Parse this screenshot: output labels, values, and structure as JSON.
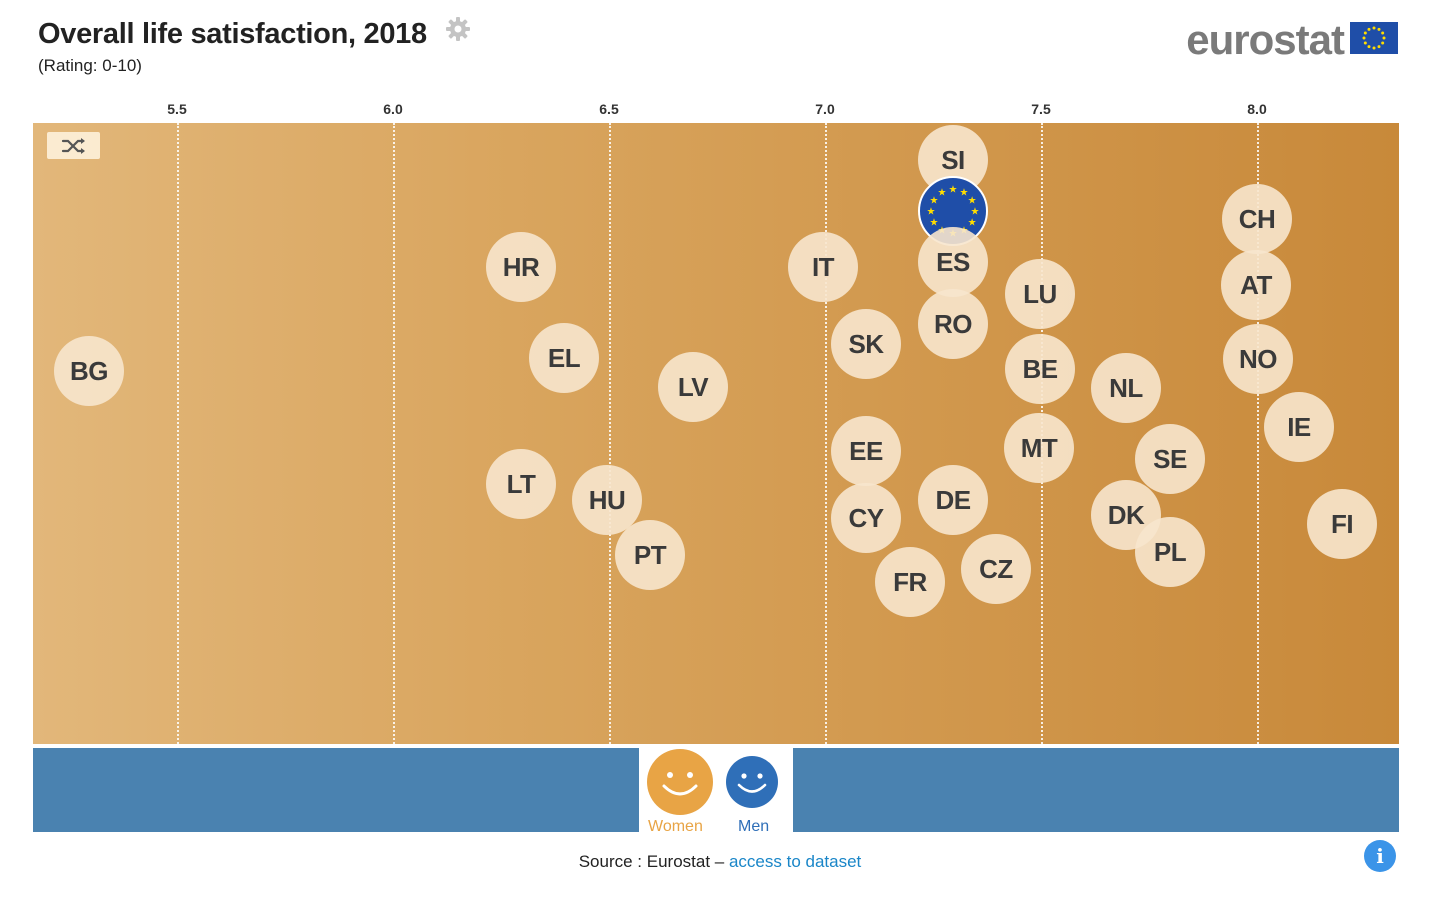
{
  "header": {
    "title": "Overall life satisfaction, 2018",
    "subtitle": "(Rating: 0-10)",
    "logo_text": "eurostat"
  },
  "icons": {
    "settings": "gear-icon",
    "shuffle": "shuffle-icon",
    "eu_flag": "eu-flag-icon",
    "info": "info-icon"
  },
  "chart_data": {
    "type": "scatter",
    "xlim": [
      5.2,
      8.35
    ],
    "x_ticks": [
      "5.5",
      "6.0",
      "6.5",
      "7.0",
      "7.5",
      "8.0"
    ],
    "grid": true,
    "points": [
      {
        "label": "BG",
        "x": 5.3
      },
      {
        "label": "HR",
        "x": 6.3
      },
      {
        "label": "EL",
        "x": 6.4
      },
      {
        "label": "LT",
        "x": 6.3
      },
      {
        "label": "HU",
        "x": 6.5
      },
      {
        "label": "PT",
        "x": 6.6
      },
      {
        "label": "LV",
        "x": 6.7
      },
      {
        "label": "IT",
        "x": 7.0
      },
      {
        "label": "SK",
        "x": 7.1
      },
      {
        "label": "EE",
        "x": 7.1
      },
      {
        "label": "CY",
        "x": 7.1
      },
      {
        "label": "FR",
        "x": 7.2
      },
      {
        "label": "SI",
        "x": 7.3
      },
      {
        "label": "EU",
        "x": 7.3
      },
      {
        "label": "ES",
        "x": 7.3
      },
      {
        "label": "RO",
        "x": 7.3
      },
      {
        "label": "DE",
        "x": 7.3
      },
      {
        "label": "CZ",
        "x": 7.4
      },
      {
        "label": "LU",
        "x": 7.5
      },
      {
        "label": "BE",
        "x": 7.5
      },
      {
        "label": "MT",
        "x": 7.5
      },
      {
        "label": "NL",
        "x": 7.7
      },
      {
        "label": "DK",
        "x": 7.7
      },
      {
        "label": "SE",
        "x": 7.8
      },
      {
        "label": "PL",
        "x": 7.8
      },
      {
        "label": "CH",
        "x": 8.0
      },
      {
        "label": "AT",
        "x": 8.0
      },
      {
        "label": "NO",
        "x": 8.0
      },
      {
        "label": "IE",
        "x": 8.1
      },
      {
        "label": "FI",
        "x": 8.2
      }
    ]
  },
  "colors": {
    "women": "#e8a445",
    "men": "#2f6fb8",
    "bar": "#4a82b0",
    "link": "#1a86c8"
  },
  "toggle": {
    "women_label": "Women",
    "men_label": "Men"
  },
  "footer": {
    "source_prefix": "Source : Eurostat – ",
    "source_link": "access to dataset"
  }
}
